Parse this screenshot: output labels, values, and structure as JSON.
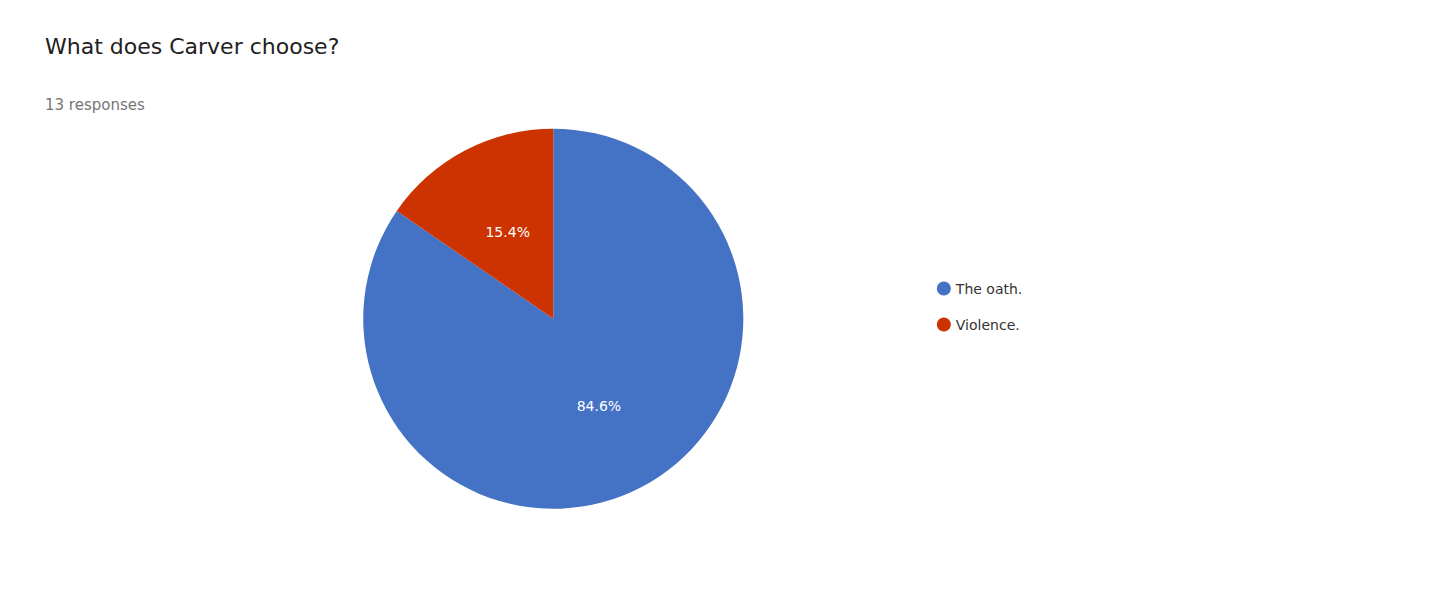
{
  "chart_data": {
    "type": "pie",
    "title": "What does Carver choose?",
    "subtitle": "13 responses",
    "categories": [
      "The oath.",
      "Violence."
    ],
    "values": [
      84.6,
      15.4
    ],
    "value_labels": [
      "84.6%",
      "15.4%"
    ],
    "colors": [
      "#4472C4",
      "#CC3300"
    ],
    "data_labels": true,
    "legend": "right"
  }
}
